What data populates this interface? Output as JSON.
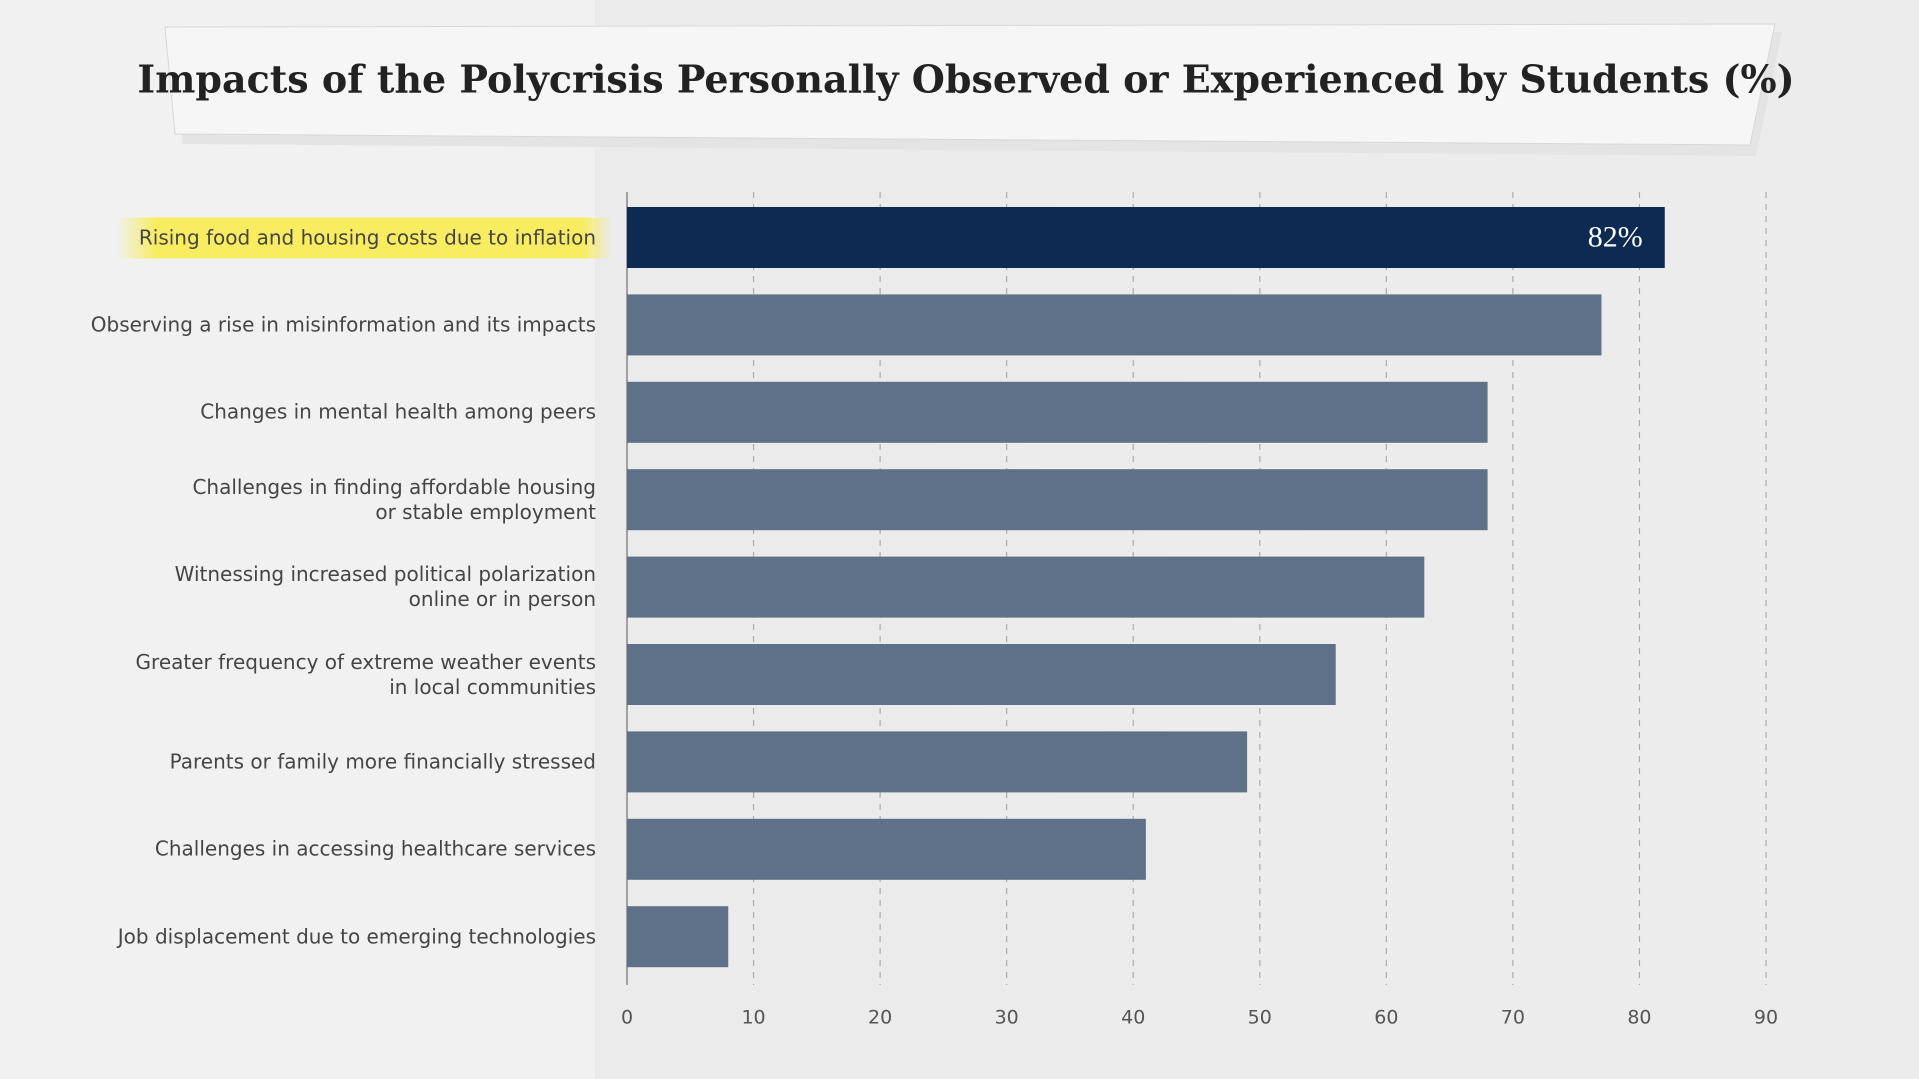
{
  "chart_data": {
    "type": "barh",
    "title": "Impacts of the Polycrisis Personally Observed or Experienced by Students (%)",
    "categories": [
      "Rising food and housing costs due to inflation",
      "Observing a rise in misinformation and its impacts",
      "Changes in mental health among peers",
      "Challenges in finding affordable housing\nor stable employment",
      "Witnessing increased political polarization\nonline or in person",
      "Greater frequency of extreme weather events\nin local communities",
      "Parents or family more financially stressed",
      "Challenges in accessing healthcare services",
      "Job displacement due to emerging technologies"
    ],
    "values": [
      82,
      77,
      68,
      68,
      63,
      56,
      49,
      41,
      8
    ],
    "value_labels": [
      "82%",
      null,
      null,
      null,
      null,
      null,
      null,
      null,
      null
    ],
    "colors": [
      "#0c2a52",
      "#5f7189",
      "#5f7189",
      "#5f7189",
      "#5f7189",
      "#5f7189",
      "#5f7189",
      "#5f7189",
      "#5f7189"
    ],
    "xlim": [
      0,
      90
    ],
    "xticks": [
      0,
      10,
      20,
      30,
      40,
      50,
      60,
      70,
      80,
      90
    ],
    "grid": true
  }
}
